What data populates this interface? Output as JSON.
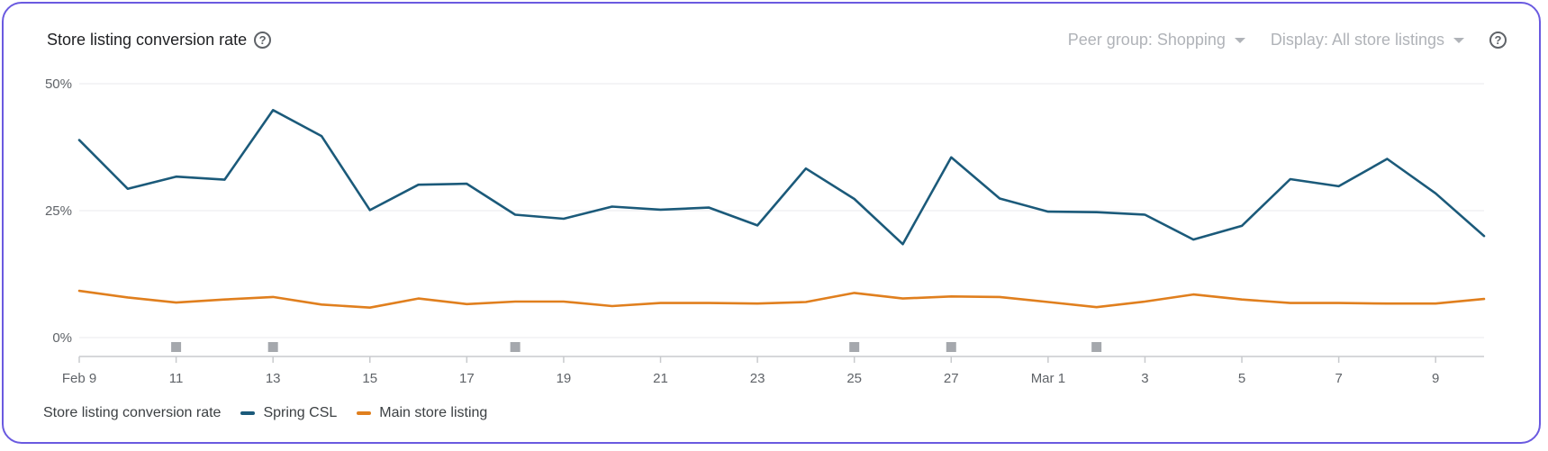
{
  "header": {
    "title": "Store listing conversion rate",
    "peer_group": "Peer group: Shopping",
    "display": "Display: All store listings"
  },
  "colors": {
    "series_1": "#1b5a7a",
    "series_2": "#e07f1e",
    "grid": "#e8eaed",
    "axis": "#c8cacd",
    "marker": "#a5a8ad"
  },
  "icons": [
    "help-icon",
    "chevron-down-icon"
  ],
  "chart_data": {
    "type": "line",
    "title": "Store listing conversion rate",
    "x": [
      "Feb 9",
      "Feb 10",
      "Feb 11",
      "Feb 12",
      "Feb 13",
      "Feb 14",
      "Feb 15",
      "Feb 16",
      "Feb 17",
      "Feb 18",
      "Feb 19",
      "Feb 20",
      "Feb 21",
      "Feb 22",
      "Feb 23",
      "Feb 24",
      "Feb 25",
      "Feb 26",
      "Feb 27",
      "Feb 28",
      "Mar 1",
      "Mar 2",
      "Mar 3",
      "Mar 4",
      "Mar 5",
      "Mar 6",
      "Mar 7",
      "Mar 8",
      "Mar 9",
      "Mar 10"
    ],
    "x_tick_labels": [
      {
        "date": "Feb 9",
        "label": "Feb 9"
      },
      {
        "date": "Feb 11",
        "label": "11"
      },
      {
        "date": "Feb 13",
        "label": "13"
      },
      {
        "date": "Feb 15",
        "label": "15"
      },
      {
        "date": "Feb 17",
        "label": "17"
      },
      {
        "date": "Feb 19",
        "label": "19"
      },
      {
        "date": "Feb 21",
        "label": "21"
      },
      {
        "date": "Feb 23",
        "label": "23"
      },
      {
        "date": "Feb 25",
        "label": "25"
      },
      {
        "date": "Feb 27",
        "label": "27"
      },
      {
        "date": "Mar 1",
        "label": "Mar 1"
      },
      {
        "date": "Mar 3",
        "label": "3"
      },
      {
        "date": "Mar 5",
        "label": "5"
      },
      {
        "date": "Mar 7",
        "label": "7"
      },
      {
        "date": "Mar 9",
        "label": "9"
      }
    ],
    "y_ticks": [
      {
        "value": 0,
        "label": "0%"
      },
      {
        "value": 25,
        "label": "25%"
      },
      {
        "value": 50,
        "label": "50%"
      }
    ],
    "ylim": [
      0,
      50
    ],
    "grid": true,
    "event_markers": [
      "Feb 11",
      "Feb 13",
      "Feb 18",
      "Feb 25",
      "Feb 27",
      "Mar 2"
    ],
    "legend_label": "Store listing conversion rate",
    "legend_position": "bottom-left",
    "series": [
      {
        "name": "Spring CSL",
        "color": "#1b5a7a",
        "values": [
          38.9,
          29.3,
          31.7,
          31.1,
          44.8,
          39.7,
          25.1,
          30.1,
          30.3,
          24.2,
          23.4,
          25.8,
          25.2,
          25.6,
          22.1,
          33.3,
          27.3,
          18.4,
          35.5,
          27.4,
          24.8,
          24.7,
          24.2,
          19.3,
          22.0,
          31.2,
          29.8,
          35.2,
          28.4,
          20.0
        ]
      },
      {
        "name": "Main store listing",
        "color": "#e07f1e",
        "values": [
          9.2,
          7.9,
          6.9,
          7.5,
          8.0,
          6.5,
          5.9,
          7.7,
          6.6,
          7.1,
          7.1,
          6.2,
          6.8,
          6.8,
          6.7,
          7.0,
          8.8,
          7.7,
          8.1,
          8.0,
          7.0,
          6.0,
          7.1,
          8.5,
          7.5,
          6.8,
          6.8,
          6.7,
          6.7,
          7.6
        ]
      }
    ]
  }
}
